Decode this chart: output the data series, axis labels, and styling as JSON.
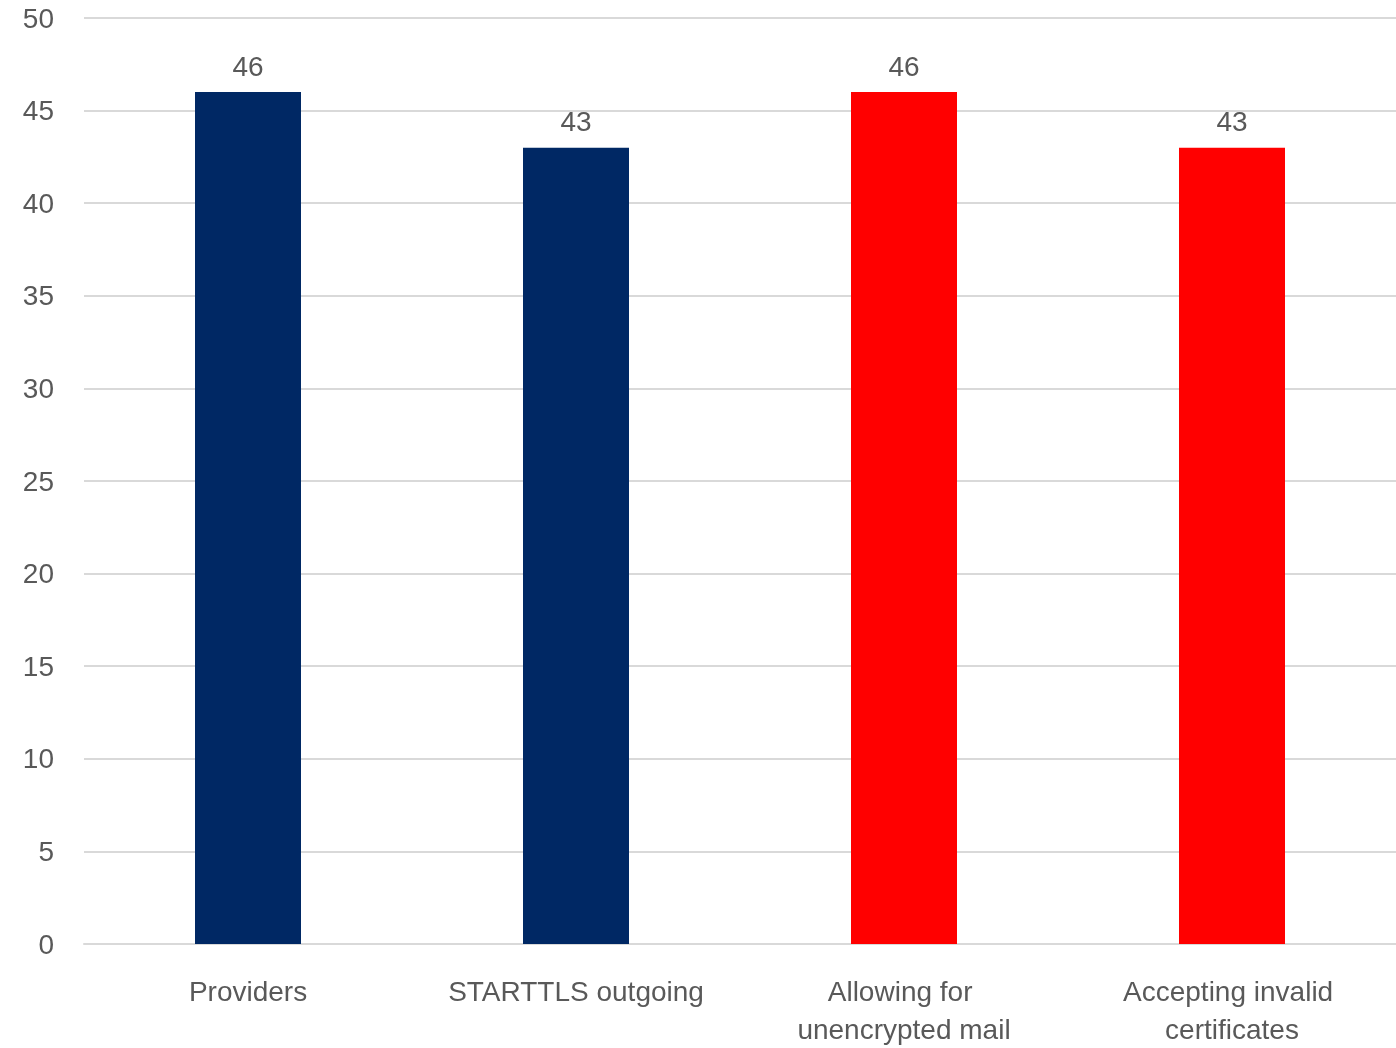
{
  "chart_data": {
    "type": "bar",
    "categories": [
      "Providers",
      "STARTTLS outgoing",
      "Allowing for unencrypted mail",
      "Accepting invalid certificates"
    ],
    "values": [
      46,
      43,
      46,
      43
    ],
    "colors": [
      "#002864",
      "#002864",
      "#ff0000",
      "#ff0000"
    ],
    "ylim": [
      0,
      50
    ],
    "yticks": [
      0,
      5,
      10,
      15,
      20,
      25,
      30,
      35,
      40,
      45,
      50
    ],
    "grid": "y",
    "data_labels": true
  }
}
